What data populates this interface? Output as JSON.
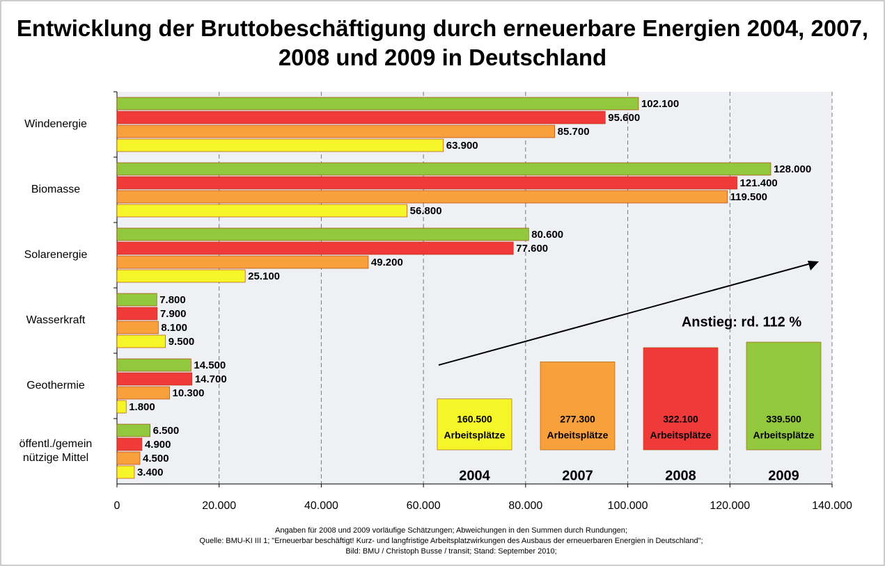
{
  "chart_data": {
    "type": "bar",
    "orientation": "horizontal",
    "title": "Entwicklung der Bruttobeschäftigung durch erneuerbare Energien 2004, 2007, 2008 und 2009 in Deutschland",
    "categories": [
      "Windenergie",
      "Biomasse",
      "Solarenergie",
      "Wasserkraft",
      "Geothermie",
      "öffentl./gemein\nnützige Mittel"
    ],
    "series": [
      {
        "name": "2009",
        "color": "#92c83e",
        "values": [
          102100,
          128000,
          80600,
          7800,
          14500,
          6500
        ],
        "value_labels": [
          "102.100",
          "128.000",
          "80.600",
          "7.800",
          "14.500",
          "6.500"
        ],
        "total": 339500,
        "total_label": "339.500"
      },
      {
        "name": "2008",
        "color": "#f03a3a",
        "values": [
          95600,
          121400,
          77600,
          7900,
          14700,
          4900
        ],
        "value_labels": [
          "95.600",
          "121.400",
          "77.600",
          "7.900",
          "14.700",
          "4.900"
        ],
        "total": 322100,
        "total_label": "322.100"
      },
      {
        "name": "2007",
        "color": "#f7a03c",
        "values": [
          85700,
          119500,
          49200,
          8100,
          10300,
          4500
        ],
        "value_labels": [
          "85.700",
          "119.500",
          "49.200",
          "8.100",
          "10.300",
          "4.500"
        ],
        "total": 277300,
        "total_label": "277.300"
      },
      {
        "name": "2004",
        "color": "#f5f52a",
        "values": [
          63900,
          56800,
          25100,
          9500,
          1800,
          3400
        ],
        "value_labels": [
          "63.900",
          "56.800",
          "25.100",
          "9.500",
          "1.800",
          "3.400"
        ],
        "total": 160500,
        "total_label": "160.500"
      }
    ],
    "total_unit": "Arbeitsplätze",
    "annotation": "Anstieg: rd. 112 %",
    "xlim": [
      0,
      140000
    ],
    "xticks": [
      0,
      {
        "value": 20000,
        "label": "20.000"
      },
      {
        "value": 40000,
        "label": "40.000"
      },
      {
        "value": 60000,
        "label": "60.000"
      },
      {
        "value": 80000,
        "label": "80.000"
      },
      {
        "value": 100000,
        "label": "100.000"
      },
      {
        "value": 120000,
        "label": "120.000"
      },
      {
        "value": 140000,
        "label": "140.000"
      }
    ],
    "grid": true,
    "footnotes": [
      "Angaben für 2008 und 2009 vorläufige Schätzungen; Abweichungen in den Summen durch Rundungen;",
      "Quelle: BMU-KI III 1; \"Erneuerbar beschäftigt! Kurz- und langfristige Arbeitsplatzwirkungen des Ausbaus der erneuerbaren Energien in Deutschland\";",
      "Bild: BMU / Christoph Busse / transit; Stand: September 2010;"
    ]
  }
}
